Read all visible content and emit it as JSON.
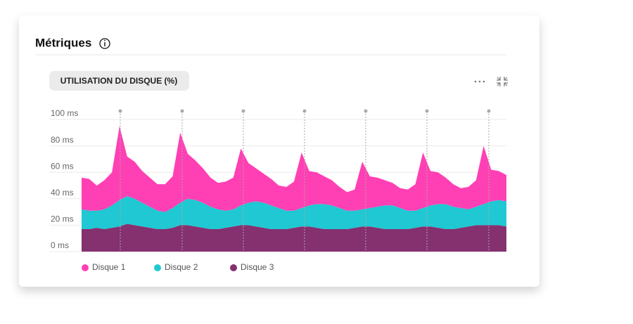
{
  "page": {
    "title": "Métriques"
  },
  "chart_data": {
    "type": "stacked-area",
    "title": "UTILISATION DU DISQUE (%)",
    "categories": [
      null,
      null,
      null,
      null,
      null,
      null,
      null,
      null,
      null,
      null,
      null,
      null,
      null,
      null,
      null,
      null,
      null,
      null,
      null,
      null,
      null,
      null,
      null,
      null,
      null,
      null,
      null,
      null,
      null,
      null,
      null,
      null,
      null,
      null,
      null,
      null,
      null,
      null,
      null,
      null,
      null,
      null,
      null,
      null,
      null,
      null,
      null,
      null,
      null,
      null,
      null,
      null,
      null,
      null,
      null,
      null,
      null
    ],
    "series": [
      {
        "name": "Disque 3",
        "color": "#85306f",
        "values": [
          17,
          17,
          18,
          17,
          18,
          19,
          21,
          20,
          19,
          18,
          17,
          17,
          18,
          20,
          20,
          19,
          18,
          17,
          17,
          18,
          19,
          20,
          20,
          19,
          18,
          17,
          17,
          17,
          18,
          19,
          19,
          18,
          17,
          17,
          17,
          17,
          18,
          19,
          19,
          18,
          17,
          17,
          17,
          17,
          18,
          19,
          19,
          18,
          17,
          17,
          18,
          19,
          20,
          20,
          20,
          20,
          19
        ]
      },
      {
        "name": "Disque 2",
        "color": "#1fc8d2",
        "values": [
          15,
          14,
          13,
          15,
          17,
          20,
          21,
          20,
          18,
          16,
          14,
          13,
          15,
          17,
          20,
          20,
          19,
          17,
          15,
          13,
          13,
          15,
          17,
          19,
          19,
          18,
          16,
          14,
          13,
          14,
          16,
          18,
          19,
          18,
          16,
          14,
          13,
          13,
          14,
          16,
          18,
          18,
          16,
          14,
          13,
          14,
          16,
          18,
          19,
          17,
          15,
          13,
          14,
          16,
          18,
          19,
          19
        ]
      },
      {
        "name": "Disque 1",
        "color": "#ff40b4",
        "values": [
          24,
          24,
          19,
          22,
          25,
          56,
          30,
          28,
          24,
          22,
          20,
          21,
          24,
          53,
          34,
          30,
          26,
          22,
          20,
          22,
          24,
          43,
          30,
          25,
          22,
          20,
          17,
          18,
          22,
          42,
          26,
          24,
          21,
          19,
          16,
          14,
          16,
          36,
          24,
          22,
          19,
          17,
          15,
          16,
          20,
          42,
          26,
          24,
          20,
          17,
          15,
          17,
          20,
          44,
          24,
          22,
          20
        ]
      }
    ],
    "ylim": [
      0,
      100
    ],
    "yticks": [
      {
        "value": 0,
        "label": "0 ms"
      },
      {
        "value": 20,
        "label": "20 ms"
      },
      {
        "value": 40,
        "label": "40 ms"
      },
      {
        "value": 60,
        "label": "60 ms"
      },
      {
        "value": 80,
        "label": "80 ms"
      },
      {
        "value": 100,
        "label": "100 ms"
      }
    ],
    "grid": true
  }
}
